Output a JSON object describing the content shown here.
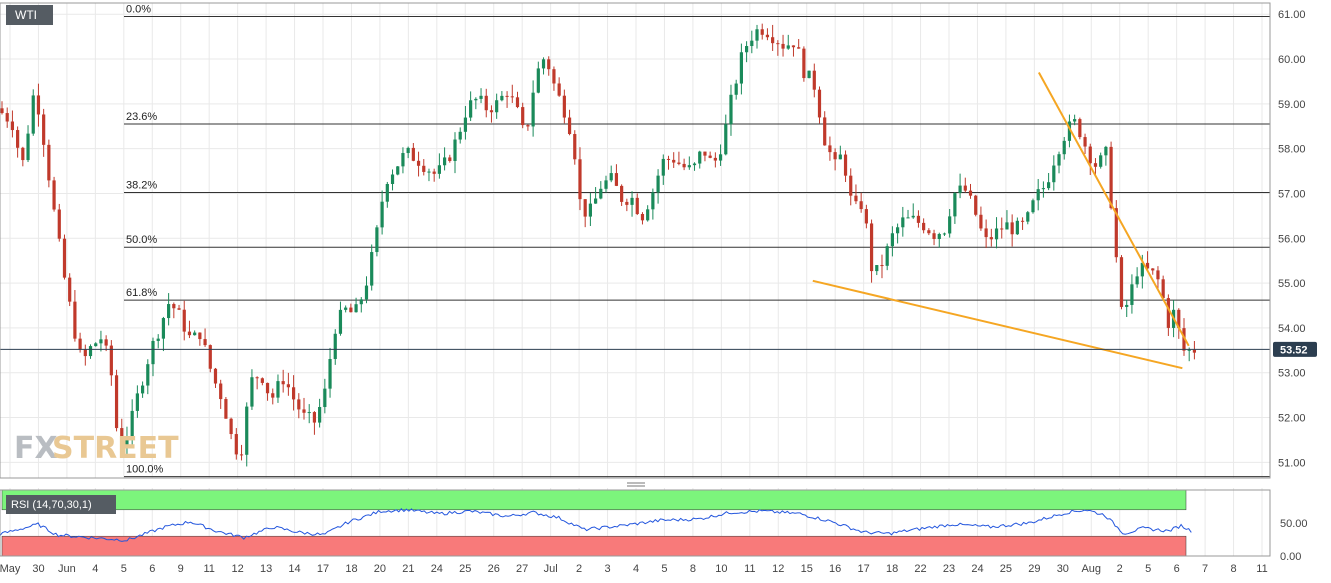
{
  "symbol": "WTI",
  "watermark": {
    "fx": "FX",
    "street": "STREET"
  },
  "colors": {
    "up": "#1a8a5a",
    "down": "#c0392b",
    "trend": "#f5a623",
    "grid": "#e9e9e9",
    "fib": "#333333",
    "rsi_line": "#2255dd",
    "overbought": "#7cf57c",
    "oversold": "#f87a7a"
  },
  "chart_data": {
    "type": "candlestick",
    "symbol": "WTI",
    "price_axis": {
      "min": 51.0,
      "max": 61.0,
      "ticks": [
        "61.00",
        "60.00",
        "59.00",
        "58.00",
        "57.00",
        "56.00",
        "55.00",
        "54.00",
        "53.00",
        "52.00",
        "51.00"
      ]
    },
    "x_ticks": [
      "May",
      "30",
      "Jun",
      "4",
      "5",
      "6",
      "9",
      "11",
      "12",
      "13",
      "14",
      "17",
      "18",
      "20",
      "21",
      "24",
      "25",
      "26",
      "27",
      "Jul",
      "2",
      "3",
      "4",
      "5",
      "8",
      "10",
      "11",
      "12",
      "15",
      "16",
      "17",
      "18",
      "22",
      "23",
      "24",
      "25",
      "29",
      "30",
      "Aug",
      "2",
      "5",
      "6",
      "7",
      "8",
      "11"
    ],
    "current_price": "53.52",
    "fibonacci": [
      {
        "label": "0.0%",
        "price": 60.95
      },
      {
        "label": "23.6%",
        "price": 58.55
      },
      {
        "label": "38.2%",
        "price": 57.02
      },
      {
        "label": "50.0%",
        "price": 55.8
      },
      {
        "label": "61.8%",
        "price": 54.62
      },
      {
        "label": "100.0%",
        "price": 50.68
      }
    ],
    "trendlines": [
      {
        "name": "falling resistance",
        "from": [
          0.818,
          59.7
        ],
        "to": [
          0.936,
          53.6
        ]
      },
      {
        "name": "falling support",
        "from": [
          0.64,
          55.05
        ],
        "to": [
          0.931,
          53.1
        ]
      }
    ],
    "price_path": [
      [
        0.0,
        58.9
      ],
      [
        0.012,
        58.6
      ],
      [
        0.02,
        57.6
      ],
      [
        0.03,
        59.4
      ],
      [
        0.037,
        58.2
      ],
      [
        0.045,
        56.6
      ],
      [
        0.052,
        55.3
      ],
      [
        0.06,
        54.1
      ],
      [
        0.067,
        53.2
      ],
      [
        0.075,
        53.6
      ],
      [
        0.083,
        53.8
      ],
      [
        0.09,
        53.0
      ],
      [
        0.096,
        51.3
      ],
      [
        0.105,
        51.8
      ],
      [
        0.112,
        52.6
      ],
      [
        0.12,
        53.4
      ],
      [
        0.128,
        54.0
      ],
      [
        0.136,
        54.6
      ],
      [
        0.145,
        54.2
      ],
      [
        0.153,
        53.7
      ],
      [
        0.16,
        53.9
      ],
      [
        0.17,
        52.9
      ],
      [
        0.178,
        52.4
      ],
      [
        0.186,
        51.4
      ],
      [
        0.192,
        51.2
      ],
      [
        0.2,
        52.8
      ],
      [
        0.208,
        53.0
      ],
      [
        0.216,
        52.4
      ],
      [
        0.226,
        52.9
      ],
      [
        0.234,
        52.4
      ],
      [
        0.242,
        52.0
      ],
      [
        0.25,
        51.9
      ],
      [
        0.258,
        52.5
      ],
      [
        0.266,
        54.0
      ],
      [
        0.274,
        54.4
      ],
      [
        0.282,
        54.3
      ],
      [
        0.29,
        54.9
      ],
      [
        0.298,
        55.9
      ],
      [
        0.306,
        57.3
      ],
      [
        0.314,
        57.6
      ],
      [
        0.322,
        57.9
      ],
      [
        0.33,
        57.8
      ],
      [
        0.338,
        57.6
      ],
      [
        0.346,
        57.4
      ],
      [
        0.354,
        57.7
      ],
      [
        0.362,
        58.2
      ],
      [
        0.37,
        58.9
      ],
      [
        0.378,
        59.1
      ],
      [
        0.386,
        58.9
      ],
      [
        0.394,
        59.0
      ],
      [
        0.402,
        59.3
      ],
      [
        0.41,
        58.8
      ],
      [
        0.416,
        58.2
      ],
      [
        0.424,
        59.6
      ],
      [
        0.432,
        60.1
      ],
      [
        0.44,
        59.3
      ],
      [
        0.448,
        58.8
      ],
      [
        0.454,
        58.2
      ],
      [
        0.46,
        56.6
      ],
      [
        0.468,
        56.6
      ],
      [
        0.476,
        57.2
      ],
      [
        0.484,
        57.3
      ],
      [
        0.492,
        56.9
      ],
      [
        0.5,
        56.9
      ],
      [
        0.508,
        56.5
      ],
      [
        0.516,
        57.0
      ],
      [
        0.524,
        57.7
      ],
      [
        0.532,
        57.8
      ],
      [
        0.54,
        57.6
      ],
      [
        0.548,
        57.5
      ],
      [
        0.556,
        58.0
      ],
      [
        0.564,
        57.6
      ],
      [
        0.572,
        58.2
      ],
      [
        0.58,
        59.3
      ],
      [
        0.588,
        60.2
      ],
      [
        0.596,
        60.6
      ],
      [
        0.604,
        60.7
      ],
      [
        0.612,
        60.5
      ],
      [
        0.62,
        60.3
      ],
      [
        0.628,
        60.4
      ],
      [
        0.636,
        59.7
      ],
      [
        0.644,
        59.4
      ],
      [
        0.652,
        58.2
      ],
      [
        0.66,
        57.6
      ],
      [
        0.666,
        57.9
      ],
      [
        0.674,
        56.6
      ],
      [
        0.682,
        56.8
      ],
      [
        0.69,
        55.1
      ],
      [
        0.698,
        55.5
      ],
      [
        0.706,
        56.1
      ],
      [
        0.714,
        56.4
      ],
      [
        0.722,
        56.4
      ],
      [
        0.73,
        56.3
      ],
      [
        0.738,
        56.1
      ],
      [
        0.746,
        56.2
      ],
      [
        0.754,
        57.0
      ],
      [
        0.762,
        57.1
      ],
      [
        0.77,
        56.6
      ],
      [
        0.778,
        55.9
      ],
      [
        0.786,
        56.1
      ],
      [
        0.794,
        56.3
      ],
      [
        0.802,
        56.2
      ],
      [
        0.81,
        56.3
      ],
      [
        0.818,
        56.9
      ],
      [
        0.826,
        57.2
      ],
      [
        0.834,
        57.9
      ],
      [
        0.842,
        58.4
      ],
      [
        0.85,
        58.6
      ],
      [
        0.858,
        58.0
      ],
      [
        0.866,
        57.6
      ],
      [
        0.874,
        57.9
      ],
      [
        0.88,
        56.0
      ],
      [
        0.886,
        54.2
      ],
      [
        0.892,
        54.7
      ],
      [
        0.898,
        55.3
      ],
      [
        0.904,
        55.3
      ],
      [
        0.91,
        55.2
      ],
      [
        0.916,
        55.0
      ],
      [
        0.922,
        54.1
      ],
      [
        0.928,
        54.4
      ],
      [
        0.932,
        53.7
      ],
      [
        0.936,
        53.4
      ],
      [
        0.94,
        53.52
      ]
    ],
    "rsi": {
      "label": "RSI (14,70,30,1)",
      "overbought": 70,
      "oversold": 30,
      "ticks": [
        "50.00",
        "0.00"
      ],
      "values": [
        [
          0.0,
          33
        ],
        [
          0.03,
          48
        ],
        [
          0.045,
          32
        ],
        [
          0.07,
          28
        ],
        [
          0.1,
          24
        ],
        [
          0.13,
          44
        ],
        [
          0.15,
          52
        ],
        [
          0.17,
          38
        ],
        [
          0.192,
          28
        ],
        [
          0.215,
          44
        ],
        [
          0.235,
          36
        ],
        [
          0.255,
          32
        ],
        [
          0.275,
          52
        ],
        [
          0.3,
          68
        ],
        [
          0.32,
          70
        ],
        [
          0.345,
          64
        ],
        [
          0.37,
          68
        ],
        [
          0.4,
          60
        ],
        [
          0.42,
          66
        ],
        [
          0.44,
          58
        ],
        [
          0.46,
          40
        ],
        [
          0.49,
          46
        ],
        [
          0.52,
          54
        ],
        [
          0.55,
          56
        ],
        [
          0.575,
          66
        ],
        [
          0.6,
          68
        ],
        [
          0.63,
          64
        ],
        [
          0.655,
          52
        ],
        [
          0.68,
          36
        ],
        [
          0.7,
          34
        ],
        [
          0.72,
          40
        ],
        [
          0.75,
          48
        ],
        [
          0.78,
          44
        ],
        [
          0.81,
          50
        ],
        [
          0.84,
          66
        ],
        [
          0.855,
          70
        ],
        [
          0.87,
          62
        ],
        [
          0.885,
          34
        ],
        [
          0.9,
          42
        ],
        [
          0.92,
          38
        ],
        [
          0.93,
          46
        ],
        [
          0.94,
          36
        ]
      ]
    }
  }
}
